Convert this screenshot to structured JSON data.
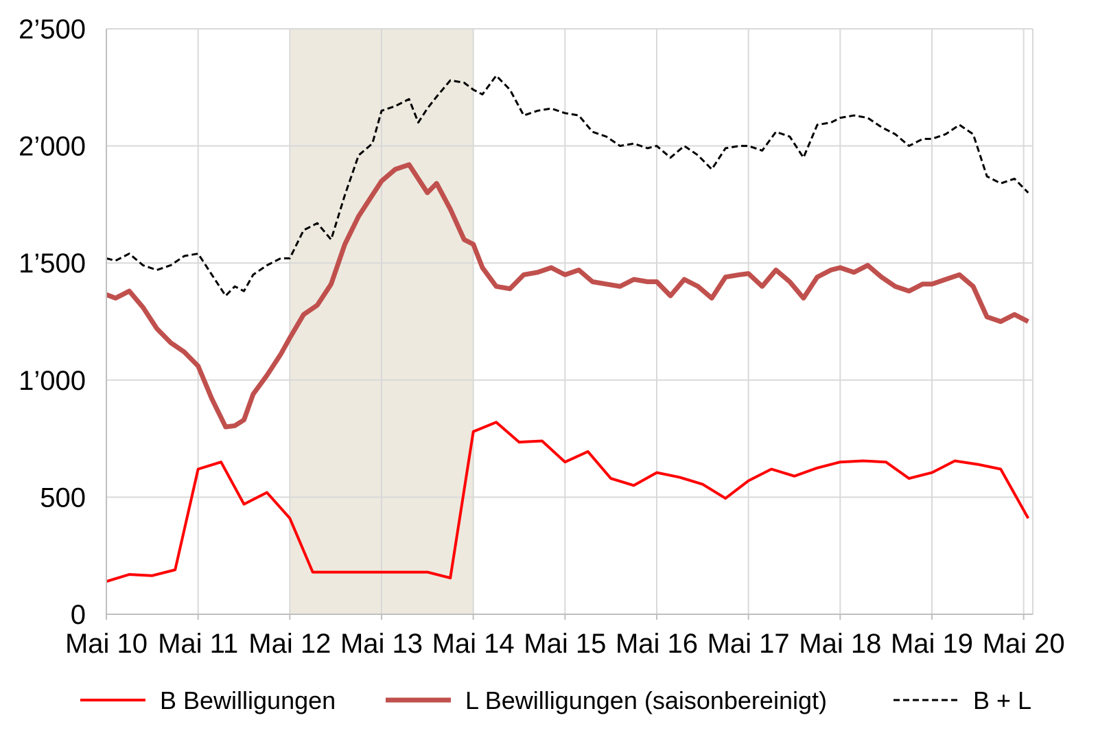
{
  "chart_data": {
    "type": "line",
    "title": "",
    "xlabel": "",
    "ylabel": "",
    "ylim": [
      0,
      2500
    ],
    "xlim": [
      2010,
      2020.1
    ],
    "grid": true,
    "legend_position": "bottom",
    "y_ticks": [
      {
        "value": 0,
        "label": "0"
      },
      {
        "value": 500,
        "label": "500"
      },
      {
        "value": 1000,
        "label": "1’000"
      },
      {
        "value": 1500,
        "label": "1’500"
      },
      {
        "value": 2000,
        "label": "2’000"
      },
      {
        "value": 2500,
        "label": "2’500"
      }
    ],
    "x_ticks": [
      {
        "value": 2010,
        "label": "Mai 10"
      },
      {
        "value": 2011,
        "label": "Mai 11"
      },
      {
        "value": 2012,
        "label": "Mai 12"
      },
      {
        "value": 2013,
        "label": "Mai 13"
      },
      {
        "value": 2014,
        "label": "Mai 14"
      },
      {
        "value": 2015,
        "label": "Mai 15"
      },
      {
        "value": 2016,
        "label": "Mai 16"
      },
      {
        "value": 2017,
        "label": "Mai 17"
      },
      {
        "value": 2018,
        "label": "Mai 18"
      },
      {
        "value": 2019,
        "label": "Mai 19"
      },
      {
        "value": 2020,
        "label": "Mai 20"
      }
    ],
    "shaded_region": {
      "from": 2012,
      "to": 2014,
      "color": "#ede9df"
    },
    "series": [
      {
        "name": "B Bewilligungen",
        "color": "#ff0000",
        "style": "solid",
        "width": 4,
        "x": [
          2010.0,
          2010.25,
          2010.5,
          2010.75,
          2011.0,
          2011.25,
          2011.5,
          2011.75,
          2012.0,
          2012.25,
          2012.5,
          2012.75,
          2013.0,
          2013.25,
          2013.5,
          2013.75,
          2014.0,
          2014.25,
          2014.5,
          2014.75,
          2015.0,
          2015.25,
          2015.5,
          2015.75,
          2016.0,
          2016.25,
          2016.5,
          2016.75,
          2017.0,
          2017.25,
          2017.5,
          2017.75,
          2018.0,
          2018.25,
          2018.5,
          2018.75,
          2019.0,
          2019.25,
          2019.5,
          2019.75,
          2020.05
        ],
        "y": [
          140,
          170,
          165,
          190,
          620,
          650,
          470,
          520,
          410,
          180,
          180,
          180,
          180,
          180,
          180,
          155,
          780,
          820,
          735,
          740,
          650,
          695,
          580,
          550,
          605,
          585,
          555,
          495,
          570,
          620,
          590,
          625,
          650,
          655,
          650,
          580,
          605,
          655,
          640,
          620,
          410
        ]
      },
      {
        "name": "L Bewilligungen (saisonbereinigt)",
        "color": "#c0504d",
        "style": "solid",
        "width": 7,
        "x": [
          2010.0,
          2010.1,
          2010.25,
          2010.4,
          2010.55,
          2010.7,
          2010.85,
          2011.0,
          2011.15,
          2011.3,
          2011.4,
          2011.5,
          2011.6,
          2011.75,
          2011.9,
          2012.0,
          2012.15,
          2012.3,
          2012.45,
          2012.6,
          2012.75,
          2012.9,
          2013.0,
          2013.15,
          2013.3,
          2013.4,
          2013.5,
          2013.6,
          2013.75,
          2013.9,
          2014.0,
          2014.1,
          2014.25,
          2014.4,
          2014.55,
          2014.7,
          2014.85,
          2015.0,
          2015.15,
          2015.3,
          2015.45,
          2015.6,
          2015.75,
          2015.9,
          2016.0,
          2016.15,
          2016.3,
          2016.45,
          2016.6,
          2016.75,
          2016.9,
          2017.0,
          2017.15,
          2017.3,
          2017.45,
          2017.6,
          2017.75,
          2017.9,
          2018.0,
          2018.15,
          2018.3,
          2018.45,
          2018.6,
          2018.75,
          2018.9,
          2019.0,
          2019.15,
          2019.3,
          2019.45,
          2019.6,
          2019.75,
          2019.9,
          2020.05
        ],
        "y": [
          1365,
          1350,
          1380,
          1310,
          1220,
          1160,
          1120,
          1060,
          920,
          800,
          805,
          830,
          940,
          1020,
          1110,
          1180,
          1280,
          1320,
          1410,
          1580,
          1700,
          1790,
          1850,
          1900,
          1920,
          1860,
          1800,
          1840,
          1730,
          1600,
          1580,
          1480,
          1400,
          1390,
          1450,
          1460,
          1480,
          1450,
          1470,
          1420,
          1410,
          1400,
          1430,
          1420,
          1420,
          1360,
          1430,
          1400,
          1350,
          1440,
          1450,
          1455,
          1400,
          1470,
          1420,
          1350,
          1440,
          1470,
          1480,
          1460,
          1490,
          1440,
          1400,
          1380,
          1410,
          1410,
          1430,
          1450,
          1400,
          1270,
          1250,
          1280,
          1250
        ]
      },
      {
        "name": "B + L",
        "color": "#000000",
        "style": "dashed",
        "width": 3,
        "x": [
          2010.0,
          2010.1,
          2010.25,
          2010.4,
          2010.55,
          2010.7,
          2010.85,
          2011.0,
          2011.15,
          2011.3,
          2011.4,
          2011.5,
          2011.6,
          2011.75,
          2011.9,
          2012.0,
          2012.15,
          2012.3,
          2012.45,
          2012.6,
          2012.75,
          2012.9,
          2013.0,
          2013.15,
          2013.3,
          2013.4,
          2013.5,
          2013.6,
          2013.75,
          2013.9,
          2014.0,
          2014.1,
          2014.25,
          2014.4,
          2014.55,
          2014.7,
          2014.85,
          2015.0,
          2015.15,
          2015.3,
          2015.45,
          2015.6,
          2015.75,
          2015.9,
          2016.0,
          2016.15,
          2016.3,
          2016.45,
          2016.6,
          2016.75,
          2016.9,
          2017.0,
          2017.15,
          2017.3,
          2017.45,
          2017.6,
          2017.75,
          2017.9,
          2018.0,
          2018.15,
          2018.3,
          2018.45,
          2018.6,
          2018.75,
          2018.9,
          2019.0,
          2019.15,
          2019.3,
          2019.45,
          2019.6,
          2019.75,
          2019.9,
          2020.05
        ],
        "y": [
          1520,
          1510,
          1540,
          1490,
          1470,
          1490,
          1530,
          1540,
          1450,
          1360,
          1400,
          1380,
          1450,
          1490,
          1520,
          1520,
          1640,
          1670,
          1600,
          1790,
          1960,
          2010,
          2150,
          2170,
          2200,
          2100,
          2160,
          2210,
          2280,
          2270,
          2240,
          2220,
          2300,
          2240,
          2130,
          2150,
          2160,
          2140,
          2130,
          2060,
          2040,
          2000,
          2010,
          1990,
          2000,
          1950,
          2000,
          1960,
          1900,
          1990,
          2000,
          2000,
          1980,
          2060,
          2040,
          1950,
          2090,
          2100,
          2120,
          2130,
          2120,
          2080,
          2050,
          2000,
          2030,
          2030,
          2050,
          2090,
          2050,
          1870,
          1840,
          1860,
          1800
        ]
      }
    ]
  }
}
